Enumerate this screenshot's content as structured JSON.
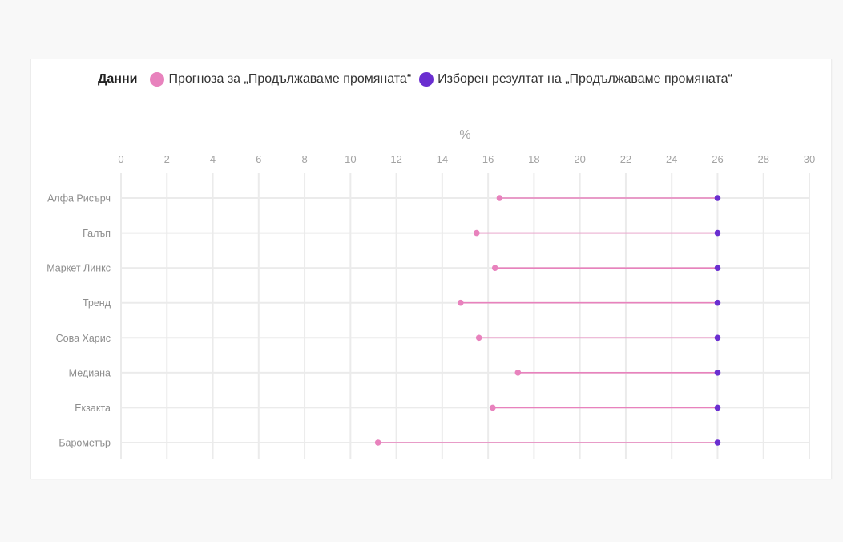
{
  "legend": {
    "title": "Данни",
    "items": [
      {
        "label": "Прогноза за „Продължаваме промяната“",
        "color": "#e882bd"
      },
      {
        "label": "Изборен резултат на „Продължаваме промяната“",
        "color": "#6a2ed0"
      }
    ]
  },
  "chart_data": {
    "type": "dumbbell",
    "xlabel": "%",
    "xlim": [
      0,
      30
    ],
    "xticks": [
      0,
      2,
      4,
      6,
      8,
      10,
      12,
      14,
      16,
      18,
      20,
      22,
      24,
      26,
      28,
      30
    ],
    "categories": [
      "Алфа Рисърч",
      "Галъп",
      "Маркет Линкс",
      "Тренд",
      "Сова Харис",
      "Медиана",
      "Екзакта",
      "Барометър"
    ],
    "series": [
      {
        "name": "Прогноза за „Продължаваме промяната“",
        "color": "#e882bd",
        "values": [
          16.5,
          15.5,
          16.3,
          14.8,
          15.6,
          17.3,
          16.2,
          11.2
        ]
      },
      {
        "name": "Изборен резултат на „Продължаваме промяната“",
        "color": "#6a2ed0",
        "values": [
          26,
          26,
          26,
          26,
          26,
          26,
          26,
          26
        ]
      }
    ],
    "grid": true,
    "legend_position": "top-left"
  }
}
